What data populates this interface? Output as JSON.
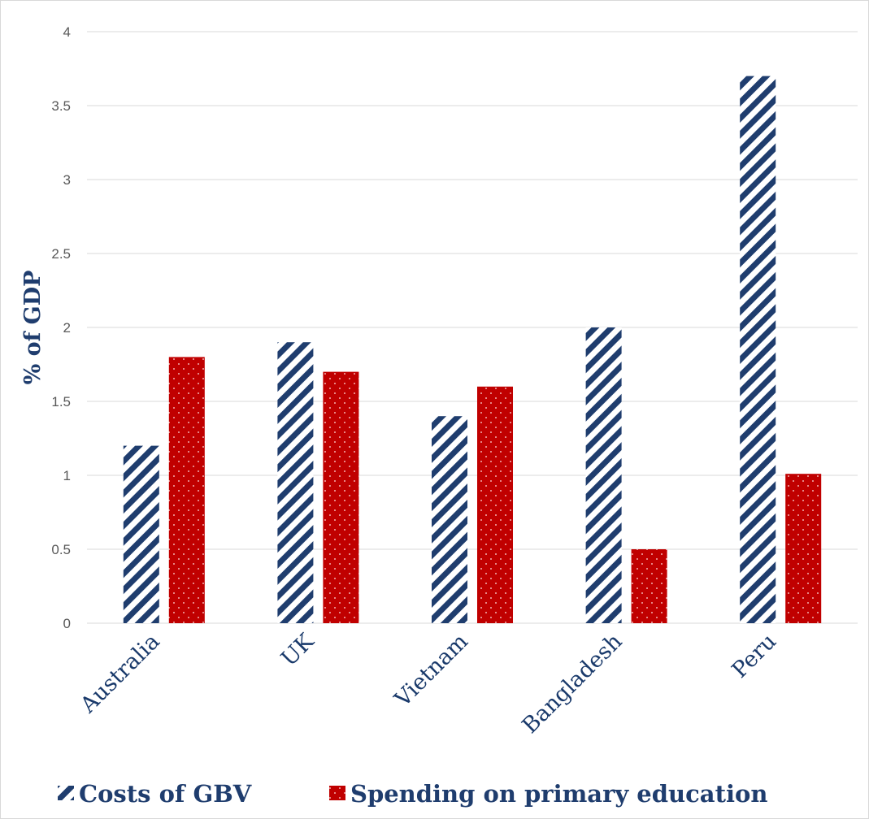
{
  "chart_data": {
    "type": "bar",
    "categories": [
      "Australia",
      "UK",
      "Vietnam",
      "Bangladesh",
      "Peru"
    ],
    "series": [
      {
        "name": "Costs of GBV",
        "values": [
          1.2,
          1.9,
          1.4,
          2.0,
          3.7
        ]
      },
      {
        "name": "Spending on primary education",
        "values": [
          1.8,
          1.7,
          1.6,
          0.5,
          1.01
        ]
      }
    ],
    "title": "",
    "xlabel": "",
    "ylabel": "% of GDP",
    "ylim": [
      0,
      4
    ],
    "yticks": [
      "0",
      "0.5",
      "1",
      "1.5",
      "2",
      "2.5",
      "3",
      "3.5",
      "4"
    ],
    "grid": true,
    "legend_position": "bottom",
    "colors": {
      "costs_of_gbv": "#1f3d6e",
      "spending_on_primary_education": "#c00000",
      "gridline": "#d9d9d9"
    }
  }
}
